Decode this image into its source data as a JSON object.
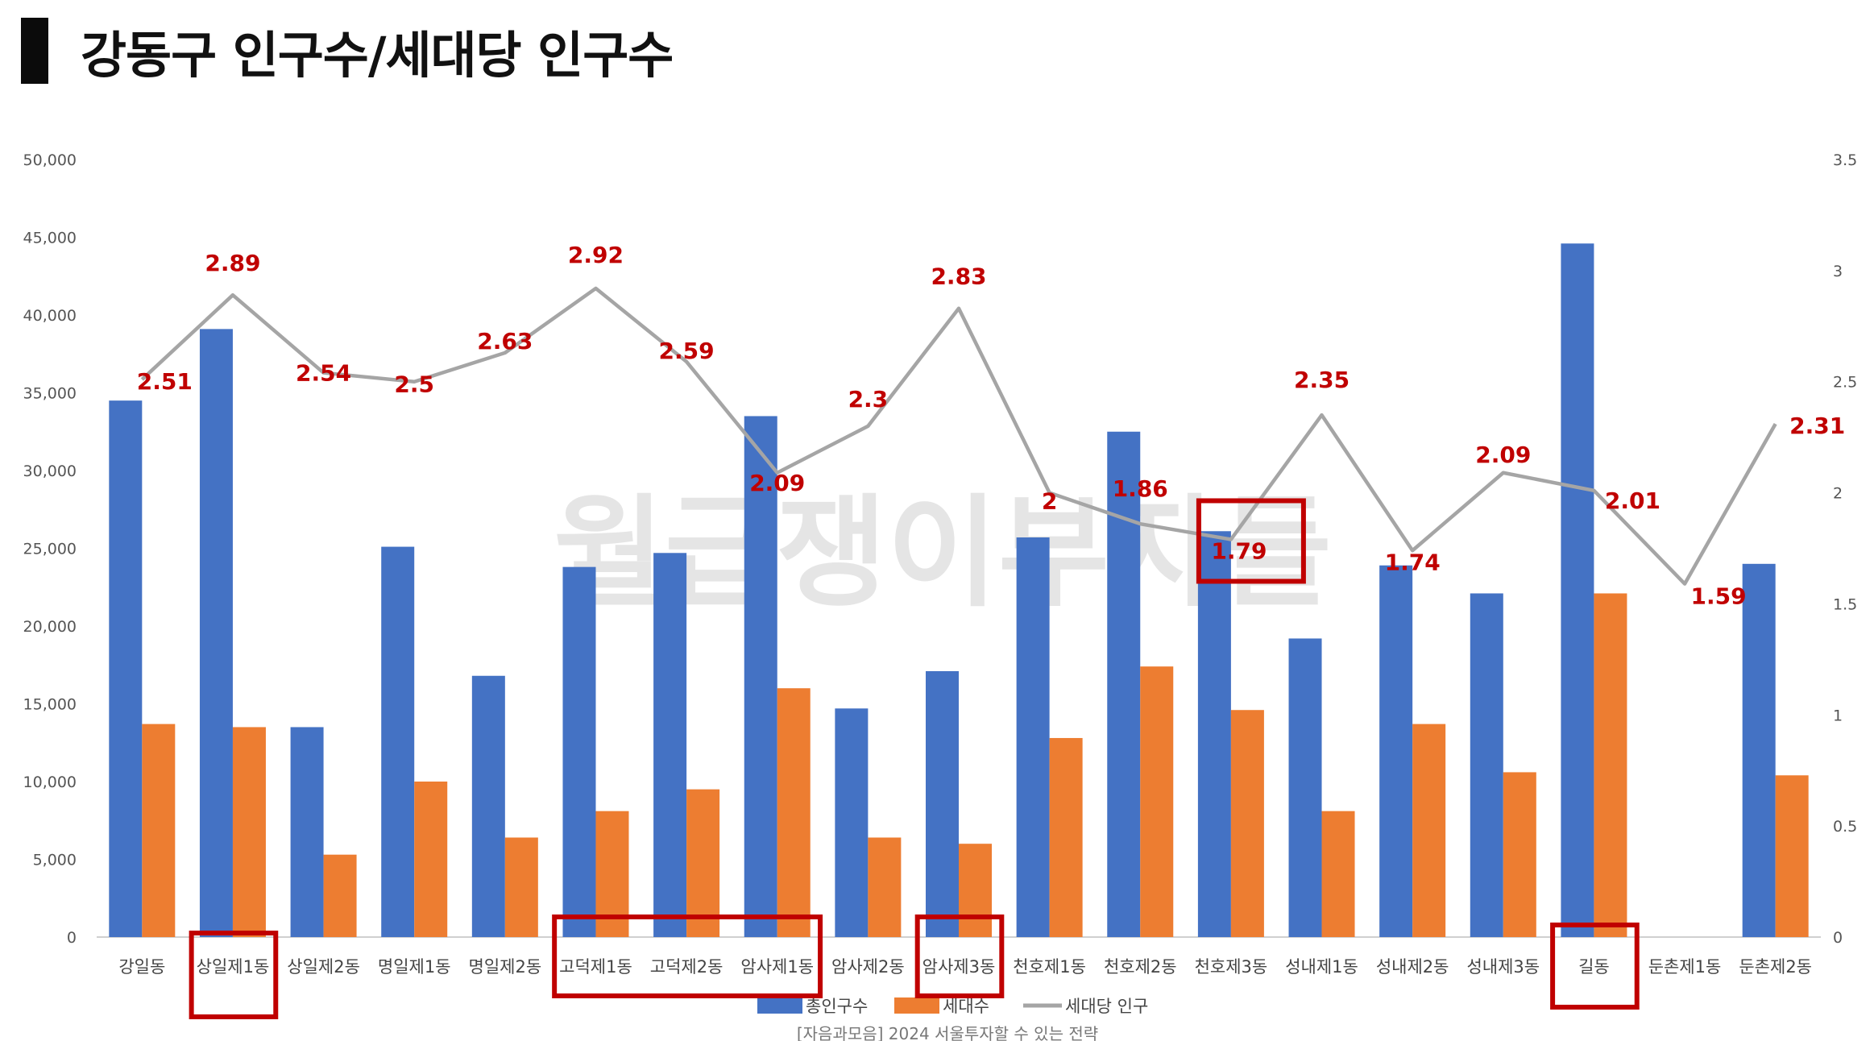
{
  "title": "강동구 인구수/세대당 인구수",
  "watermark": "월급쟁이부자들",
  "source_note": "[자음과모음] 2024 서울투자할 수 있는 전략",
  "colors": {
    "population": "#4472c4",
    "households": "#ed7d31",
    "per_household": "#a5a5a5",
    "labels": "#c00000",
    "highlight_box": "#c00000"
  },
  "highlighted_dongs": [
    "상일제1동",
    "고덕제1동",
    "고덕제2동",
    "암사제1동",
    "암사제3동",
    "천호제3동",
    "길동"
  ],
  "chart_data": {
    "type": "bar",
    "categories": [
      "강일동",
      "상일제1동",
      "상일제2동",
      "명일제1동",
      "명일제2동",
      "고덕제1동",
      "고덕제2동",
      "암사제1동",
      "암사제2동",
      "암사제3동",
      "천호제1동",
      "천호제2동",
      "천호제3동",
      "성내제1동",
      "성내제2동",
      "성내제3동",
      "길동",
      "둔촌제1동",
      "둔촌제2동"
    ],
    "series": [
      {
        "name": "총인구수",
        "type": "bar",
        "axis": "left",
        "values": [
          34500,
          39100,
          13500,
          25100,
          16800,
          23800,
          24700,
          33500,
          14700,
          17100,
          25700,
          32500,
          26100,
          19200,
          23900,
          22100,
          44600,
          0,
          24000
        ]
      },
      {
        "name": "세대수",
        "type": "bar",
        "axis": "left",
        "values": [
          13700,
          13500,
          5300,
          10000,
          6400,
          8100,
          9500,
          16000,
          6400,
          6000,
          12800,
          17400,
          14600,
          8100,
          13700,
          10600,
          22100,
          0,
          10400
        ]
      },
      {
        "name": "세대당 인구",
        "type": "line",
        "axis": "right",
        "values": [
          2.51,
          2.89,
          2.54,
          2.5,
          2.63,
          2.92,
          2.59,
          2.09,
          2.3,
          2.83,
          2.0,
          1.86,
          1.79,
          2.35,
          1.74,
          2.09,
          2.01,
          1.59,
          2.31
        ],
        "labels": [
          "2.51",
          "2.89",
          "2.54",
          "2.5",
          "2.63",
          "2.92",
          "2.59",
          "2.09",
          "2.3",
          "2.83",
          "2",
          "1.86",
          "1.79",
          "2.35",
          "1.74",
          "2.09",
          "2.01",
          "1.59",
          "2.31"
        ]
      }
    ],
    "y_left": {
      "min": 0,
      "max": 50000,
      "step": 5000,
      "ticks": [
        "0",
        "5,000",
        "10,000",
        "15,000",
        "20,000",
        "25,000",
        "30,000",
        "35,000",
        "40,000",
        "45,000",
        "50,000"
      ]
    },
    "y_right": {
      "min": 0,
      "max": 3.5,
      "step": 0.5,
      "ticks": [
        "0",
        "0.5",
        "1",
        "1.5",
        "2",
        "2.5",
        "3",
        "3.5"
      ]
    },
    "legend": {
      "position": "bottom",
      "entries": [
        "총인구수",
        "세대수",
        "세대당 인구"
      ]
    },
    "grid": false
  }
}
